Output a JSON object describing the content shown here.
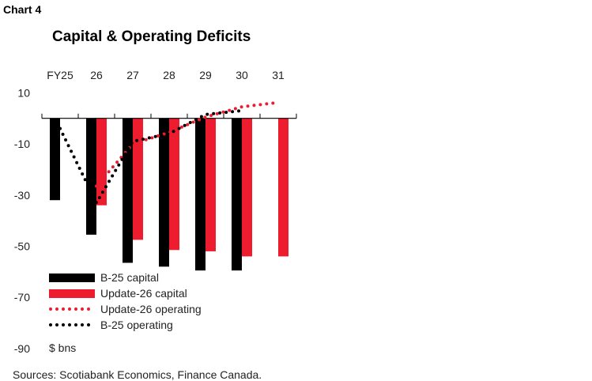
{
  "chart_label": "Chart 4",
  "chart_data": {
    "type": "bar",
    "title": "Capital & Operating Deficits",
    "categories": [
      "FY25",
      "26",
      "27",
      "28",
      "29",
      "30",
      "31"
    ],
    "ylabel": "$ bns",
    "ylim": [
      -90,
      10
    ],
    "yticks": [
      10,
      -10,
      -30,
      -50,
      -70,
      -90
    ],
    "legend_placement": "bottom-left",
    "series": [
      {
        "name": "B-25 capital",
        "kind": "bar",
        "color": "#000000",
        "values": [
          -32,
          -45.5,
          -56.5,
          -58,
          -59.5,
          -59.5,
          null
        ]
      },
      {
        "name": "Update-26 capital",
        "kind": "bar",
        "color": "#ed1c2e",
        "values": [
          null,
          -34,
          -47.5,
          -51.5,
          -52,
          -54,
          -54
        ]
      },
      {
        "name": "Update-26 operating",
        "kind": "dotted-line",
        "color": "#ed1c2e",
        "values": [
          null,
          -26.5,
          -10,
          -5.5,
          0.5,
          4.5,
          6.2
        ]
      },
      {
        "name": "B-25 operating",
        "kind": "dotted-line",
        "color": "#000000",
        "values": [
          -4,
          -33,
          -9,
          -6,
          1.5,
          3,
          null
        ]
      }
    ]
  },
  "source": "Sources: Scotiabank Economics, Finance Canada."
}
